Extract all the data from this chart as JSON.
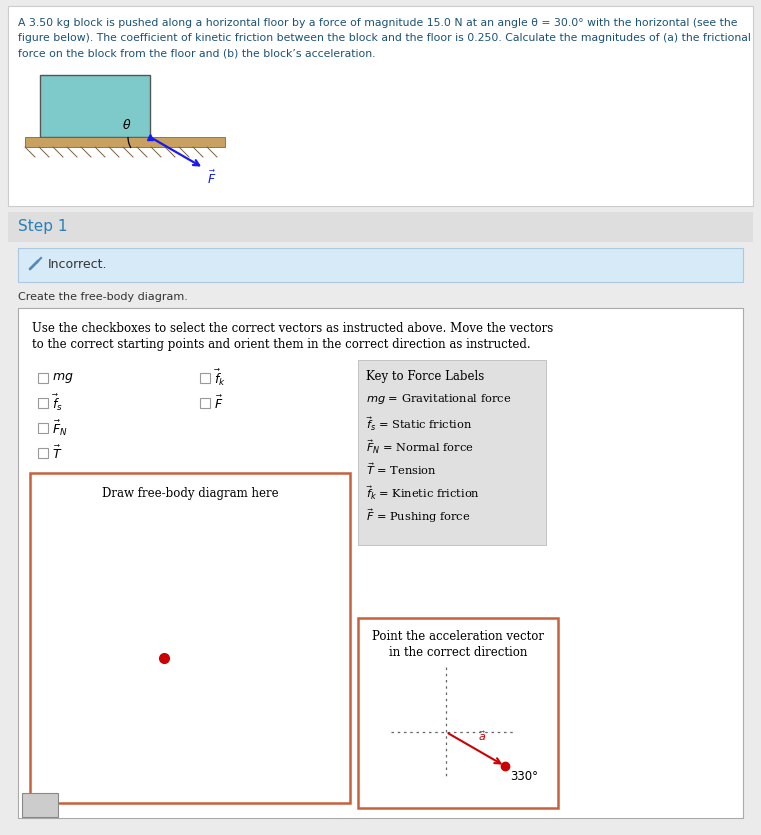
{
  "bg_color": "#ebebeb",
  "panel_bg": "#ffffff",
  "block_color": "#7ecaca",
  "blue_text": "#2b6cb0",
  "red_color": "#cc0000",
  "step1_bg": "#e0e0e0",
  "incorrect_bg": "#d6eaf8",
  "box_border": "#c8603a",
  "key_bg": "#e0e0e0",
  "prob_text_line1": "A 3.50 kg block is pushed along a horizontal floor by a force of magnitude 15.0 N at an angle θ = 30.0° with the horizontal (see the",
  "prob_text_line2": "figure below). The coefficient of kinetic friction between the block and the floor is 0.250. Calculate the magnitudes of (a) the frictional",
  "prob_text_line3": "force on the block from the floor and (b) the block’s acceleration.",
  "step1_label": "Step 1",
  "incorrect_label": "Incorrect.",
  "create_label": "Create the free-body diagram.",
  "instruction_line1": "Use the checkboxes to select the correct vectors as instructed above. Move the vectors",
  "instruction_line2": "to the correct starting points and orient them in the correct direction as instructed.",
  "draw_label": "Draw free-body diagram here",
  "accel_label_line1": "Point the acceleration vector",
  "accel_label_line2": "in the correct direction",
  "angle_label": "330°",
  "key_title": "Key to Force Labels",
  "key_lines": [
    "mg = Gravitational force",
    "fs = Static friction",
    "FN = Normal force",
    "T = Tension",
    "fk = Kinetic friction",
    "F = Pushing force"
  ]
}
